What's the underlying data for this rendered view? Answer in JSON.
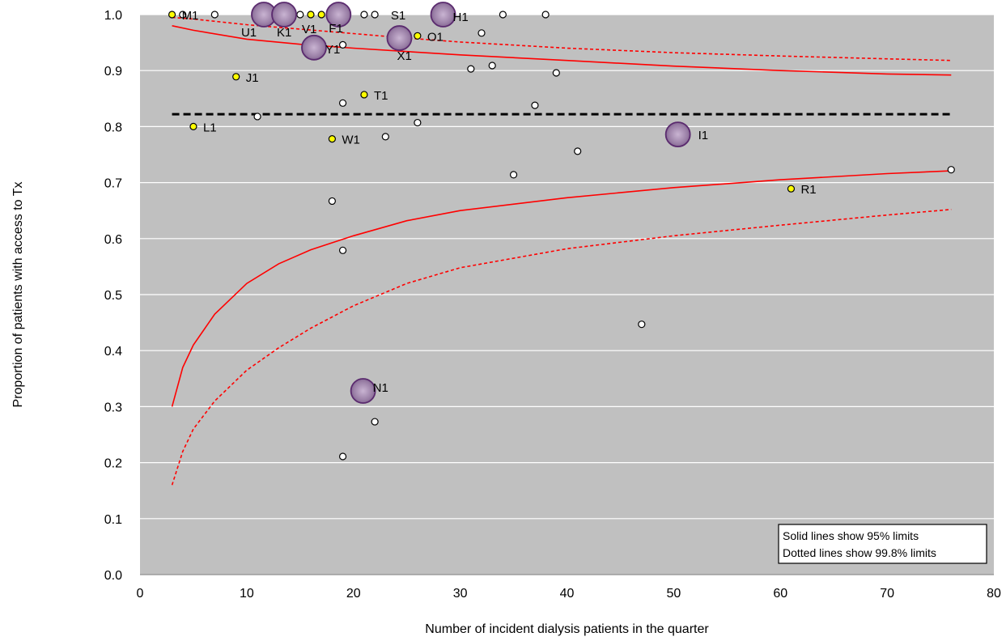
{
  "chart_data": {
    "type": "scatter",
    "title": "",
    "xlabel": "Number of incident dialysis patients in the quarter",
    "ylabel": "Proportion of patients with access to Tx",
    "xlim": [
      0,
      80
    ],
    "ylim": [
      0,
      1.0
    ],
    "x_ticks": [
      0,
      10,
      20,
      30,
      40,
      50,
      60,
      70,
      80
    ],
    "y_ticks": [
      "0.0",
      "0.1",
      "0.2",
      "0.3",
      "0.4",
      "0.5",
      "0.6",
      "0.7",
      "0.8",
      "0.9",
      "1.0"
    ],
    "grid": "horizontal",
    "background": "#c0c0c0",
    "mean_line": {
      "y": 0.822,
      "x_range": [
        3,
        76
      ],
      "style": "dashed",
      "color": "#000000"
    },
    "limits": [
      {
        "kind": "95",
        "style": "solid",
        "color": "#ff0000",
        "upper": [
          [
            3,
            0.98
          ],
          [
            5,
            0.972
          ],
          [
            10,
            0.956
          ],
          [
            15,
            0.947
          ],
          [
            20,
            0.94
          ],
          [
            25,
            0.934
          ],
          [
            30,
            0.928
          ],
          [
            40,
            0.918
          ],
          [
            50,
            0.908
          ],
          [
            60,
            0.9
          ],
          [
            70,
            0.894
          ],
          [
            76,
            0.892
          ]
        ],
        "lower": [
          [
            3,
            0.3
          ],
          [
            4,
            0.37
          ],
          [
            5,
            0.41
          ],
          [
            7,
            0.465
          ],
          [
            10,
            0.52
          ],
          [
            13,
            0.555
          ],
          [
            16,
            0.58
          ],
          [
            20,
            0.605
          ],
          [
            25,
            0.632
          ],
          [
            30,
            0.65
          ],
          [
            40,
            0.673
          ],
          [
            50,
            0.691
          ],
          [
            60,
            0.705
          ],
          [
            70,
            0.716
          ],
          [
            76,
            0.721
          ]
        ]
      },
      {
        "kind": "99.8",
        "style": "dotted",
        "color": "#ff0000",
        "upper": [
          [
            3,
            0.995
          ],
          [
            5,
            0.992
          ],
          [
            10,
            0.982
          ],
          [
            15,
            0.974
          ],
          [
            20,
            0.966
          ],
          [
            25,
            0.958
          ],
          [
            30,
            0.951
          ],
          [
            40,
            0.94
          ],
          [
            50,
            0.932
          ],
          [
            60,
            0.926
          ],
          [
            70,
            0.921
          ],
          [
            76,
            0.918
          ]
        ],
        "lower": [
          [
            3,
            0.16
          ],
          [
            4,
            0.22
          ],
          [
            5,
            0.26
          ],
          [
            7,
            0.31
          ],
          [
            10,
            0.365
          ],
          [
            13,
            0.405
          ],
          [
            16,
            0.44
          ],
          [
            20,
            0.48
          ],
          [
            25,
            0.52
          ],
          [
            30,
            0.548
          ],
          [
            40,
            0.582
          ],
          [
            50,
            0.605
          ],
          [
            60,
            0.624
          ],
          [
            70,
            0.642
          ],
          [
            76,
            0.652
          ]
        ]
      }
    ],
    "series": [
      {
        "kind": "unlabeled",
        "fill": "#ffffff",
        "points": [
          [
            4,
            1.0
          ],
          [
            7,
            1.0
          ],
          [
            13,
            1.0
          ],
          [
            15,
            1.0
          ],
          [
            21,
            1.0
          ],
          [
            22,
            1.0
          ],
          [
            34,
            1.0
          ],
          [
            38,
            1.0
          ],
          [
            32,
            0.967
          ],
          [
            19,
            0.946
          ],
          [
            31,
            0.903
          ],
          [
            33,
            0.909
          ],
          [
            39,
            0.896
          ],
          [
            19,
            0.842
          ],
          [
            37,
            0.838
          ],
          [
            11,
            0.818
          ],
          [
            26,
            0.807
          ],
          [
            23,
            0.782
          ],
          [
            41,
            0.756
          ],
          [
            35,
            0.714
          ],
          [
            76,
            0.723
          ],
          [
            18,
            0.667
          ],
          [
            19,
            0.579
          ],
          [
            47,
            0.447
          ],
          [
            22,
            0.273
          ],
          [
            19,
            0.211
          ]
        ]
      },
      {
        "kind": "labeled",
        "fill": "#ffff00",
        "points": [
          {
            "x": 3,
            "y": 1.0,
            "label": "M1"
          },
          {
            "x": 16,
            "y": 1.0,
            "label": "V1"
          },
          {
            "x": 17,
            "y": 1.0,
            "label": ""
          },
          {
            "x": 26,
            "y": 0.962,
            "label": "O1"
          },
          {
            "x": 9,
            "y": 0.889,
            "label": "J1"
          },
          {
            "x": 21,
            "y": 0.857,
            "label": "T1"
          },
          {
            "x": 5,
            "y": 0.8,
            "label": "L1"
          },
          {
            "x": 18,
            "y": 0.778,
            "label": "W1"
          },
          {
            "x": 61,
            "y": 0.689,
            "label": "R1"
          }
        ]
      },
      {
        "kind": "highlighted",
        "fill": "#9a7fa6",
        "points": [
          {
            "x": 11.6,
            "y": 1.0,
            "label": "U1"
          },
          {
            "x": 13.5,
            "y": 1.0,
            "label": "K1"
          },
          {
            "x": 18.6,
            "y": 1.0,
            "label": "F1"
          },
          {
            "x": 28.4,
            "y": 1.0,
            "label": "H1"
          },
          {
            "x": 16.3,
            "y": 0.941,
            "label": "Y1"
          },
          {
            "x": 24.3,
            "y": 0.958,
            "label": "X1"
          },
          {
            "x": 50.4,
            "y": 0.786,
            "label": "I1"
          },
          {
            "x": 20.9,
            "y": 0.328,
            "label": "N1"
          }
        ]
      },
      {
        "kind": "text-only",
        "points": [
          {
            "x": 23.5,
            "y": 1.0,
            "label": "S1"
          }
        ]
      }
    ],
    "legend": {
      "placement": "bottom-right",
      "lines": [
        "Solid lines show 95% limits",
        "Dotted lines show 99.8% limits"
      ]
    }
  }
}
